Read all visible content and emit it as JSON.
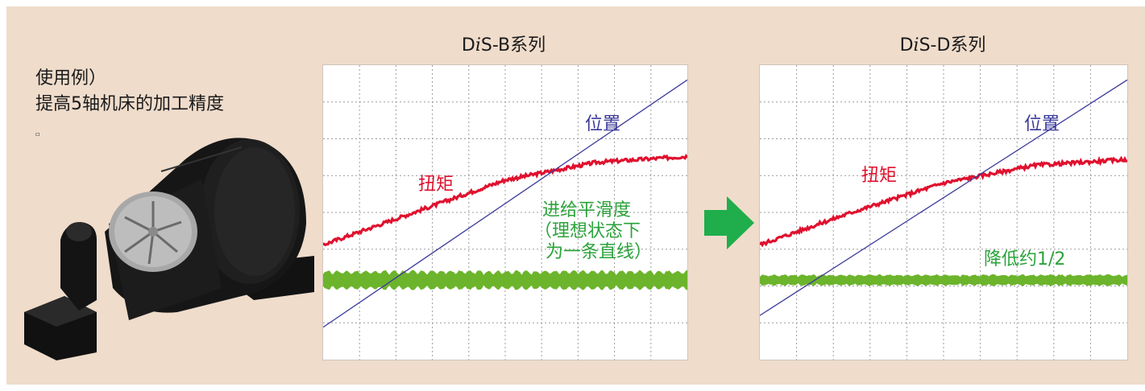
{
  "intro": {
    "line1": "使用例）",
    "line2": "提高5轴机床的加工精度"
  },
  "colors": {
    "background": "#efdccb",
    "position": "#3b3a9a",
    "torque": "#e0112e",
    "smoothness": "#6cb42c",
    "annotation_green": "#2aa33a",
    "arrow": "#1fae4b"
  },
  "chart_data": [
    {
      "type": "line",
      "title_prefix": "D",
      "title_italic": "i",
      "title_suffix": "S-B系列",
      "x": [
        0,
        1
      ],
      "xlim": [
        0,
        1
      ],
      "ylim": [
        0,
        1
      ],
      "grid": true,
      "grid_cols": 10,
      "grid_rows": 8,
      "series": [
        {
          "name": "位置",
          "label": "位置",
          "color": "#3b3a9a",
          "x": [
            0,
            1
          ],
          "values": [
            0.11,
            0.95
          ]
        },
        {
          "name": "扭矩",
          "label": "扭矩",
          "color": "#e0112e",
          "x": [
            0,
            0.25,
            0.5,
            0.75,
            1
          ],
          "values": [
            0.39,
            0.5,
            0.61,
            0.67,
            0.69
          ],
          "noise": 0.012
        },
        {
          "name": "进给平滑度",
          "label_lines": [
            "进给平滑度",
            "（理想状态下",
            "为一条直线）"
          ],
          "color": "#6cb42c",
          "x": [
            0,
            1
          ],
          "values": [
            0.27,
            0.27
          ],
          "ripple": 0.035
        }
      ]
    },
    {
      "type": "line",
      "title_prefix": "D",
      "title_italic": "i",
      "title_suffix": "S-D系列",
      "x": [
        0,
        1
      ],
      "xlim": [
        0,
        1
      ],
      "ylim": [
        0,
        1
      ],
      "grid": true,
      "grid_cols": 10,
      "grid_rows": 8,
      "series": [
        {
          "name": "位置",
          "label": "位置",
          "color": "#3b3a9a",
          "x": [
            0,
            1
          ],
          "values": [
            0.15,
            0.95
          ]
        },
        {
          "name": "扭矩",
          "label": "扭矩",
          "color": "#e0112e",
          "x": [
            0,
            0.25,
            0.5,
            0.75,
            1
          ],
          "values": [
            0.39,
            0.5,
            0.6,
            0.66,
            0.68
          ],
          "noise": 0.012
        },
        {
          "name": "降低约1/2",
          "label": "降低约1/2",
          "color": "#6cb42c",
          "x": [
            0,
            1
          ],
          "values": [
            0.27,
            0.27
          ],
          "ripple": 0.015
        }
      ]
    }
  ]
}
